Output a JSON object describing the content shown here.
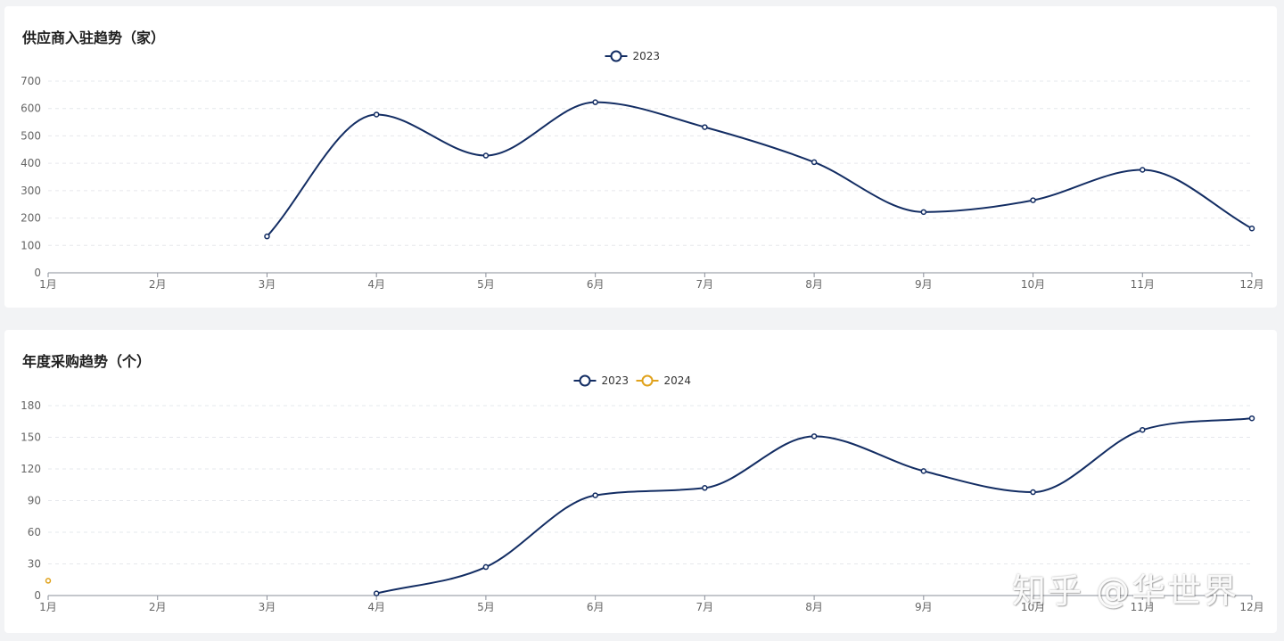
{
  "colors": {
    "s2023": "#132d63",
    "s2024": "#e0a21c",
    "grid": "#e6e8ec",
    "axis": "#8a8f99",
    "tick": "#666666"
  },
  "watermark": "知乎 @华世界",
  "chart_data": [
    {
      "type": "line",
      "title": "供应商入驻趋势（家）",
      "categories": [
        "1月",
        "2月",
        "3月",
        "4月",
        "5月",
        "6月",
        "7月",
        "8月",
        "9月",
        "10月",
        "11月",
        "12月"
      ],
      "series": [
        {
          "name": "2023",
          "values": [
            null,
            null,
            133,
            578,
            428,
            623,
            532,
            404,
            222,
            265,
            376,
            162
          ]
        }
      ],
      "ylim": [
        0,
        700
      ],
      "yticks": [
        0,
        100,
        200,
        300,
        400,
        500,
        600,
        700
      ],
      "smooth": true,
      "grid": "dashed horizontal",
      "legend": "top-center"
    },
    {
      "type": "line",
      "title": "年度采购趋势（个）",
      "categories": [
        "1月",
        "2月",
        "3月",
        "4月",
        "5月",
        "6月",
        "7月",
        "8月",
        "9月",
        "10月",
        "11月",
        "12月"
      ],
      "series": [
        {
          "name": "2023",
          "values": [
            null,
            null,
            null,
            2,
            27,
            95,
            102,
            151,
            118,
            98,
            157,
            168
          ]
        },
        {
          "name": "2024",
          "values": [
            14,
            null,
            null,
            null,
            null,
            null,
            null,
            null,
            null,
            null,
            null,
            null
          ]
        }
      ],
      "ylim": [
        0,
        180
      ],
      "yticks": [
        0,
        30,
        60,
        90,
        120,
        150,
        180
      ],
      "smooth": true,
      "grid": "dashed horizontal",
      "legend": "top-center"
    }
  ]
}
